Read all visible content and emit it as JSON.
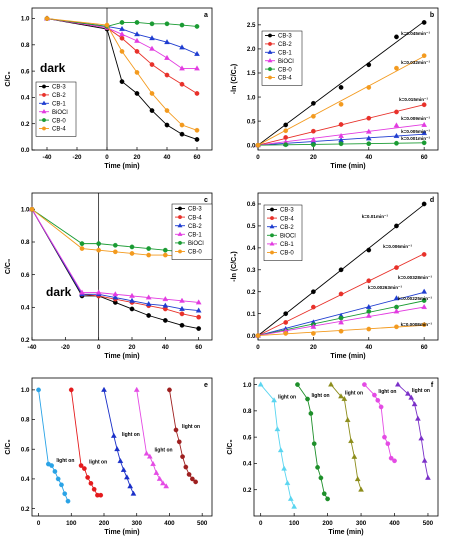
{
  "colors": {
    "cb3": "#000000",
    "cb2": "#e8312a",
    "cb1": "#1f3dd0",
    "bioc": "#e23be0",
    "cb0": "#1a9b33",
    "cb4": "#f39a1e",
    "c_cb3": "#000000",
    "c_cb4": "#e8312a",
    "c_cb2": "#1f3dd0",
    "c_cb1": "#e23be0",
    "c_bioc": "#1a9b33",
    "c_cb0": "#f39a1e",
    "e1": "#2aa3e6",
    "e2": "#e41a1c",
    "e3": "#1a2fc8",
    "e4": "#e44be4",
    "e5": "#9e1f1f",
    "f1": "#5ad5f0",
    "f2": "#1e8f2a",
    "f3": "#8c8c1a",
    "f4": "#e44be4",
    "f5": "#7a2fc8"
  },
  "chart_data": [
    {
      "id": "a",
      "panel_label": "a",
      "type": "line",
      "xlabel": "Time (min)",
      "ylabel": "C/C₀",
      "xlim": [
        -50,
        70
      ],
      "ylim": [
        0.0,
        1.08
      ],
      "xticks": [
        "-40",
        "-20",
        "0",
        "20",
        "40",
        "60"
      ],
      "yticks": [
        "0.0",
        "0.2",
        "0.4",
        "0.6",
        "0.8",
        "1.0"
      ],
      "annotation": "dark",
      "series": [
        {
          "name": "CB-3",
          "color": "cb3",
          "marker": "circle",
          "x": [
            -40,
            0,
            10,
            20,
            30,
            40,
            50,
            60
          ],
          "y": [
            1.0,
            0.92,
            0.52,
            0.43,
            0.3,
            0.19,
            0.12,
            0.08
          ]
        },
        {
          "name": "CB-2",
          "color": "cb2",
          "marker": "circle",
          "x": [
            -40,
            0,
            10,
            20,
            30,
            40,
            50,
            60
          ],
          "y": [
            1.0,
            0.93,
            0.85,
            0.75,
            0.65,
            0.57,
            0.5,
            0.43
          ]
        },
        {
          "name": "CB-1",
          "color": "cb1",
          "marker": "triangle",
          "x": [
            -40,
            0,
            10,
            20,
            30,
            40,
            50,
            60
          ],
          "y": [
            1.0,
            0.94,
            0.92,
            0.88,
            0.85,
            0.82,
            0.78,
            0.73
          ]
        },
        {
          "name": "BiOCl",
          "color": "bioc",
          "marker": "triangle",
          "x": [
            -40,
            0,
            10,
            20,
            30,
            40,
            50,
            60
          ],
          "y": [
            1.0,
            0.93,
            0.88,
            0.83,
            0.77,
            0.7,
            0.62,
            0.62
          ]
        },
        {
          "name": "CB-0",
          "color": "cb0",
          "marker": "circle",
          "x": [
            -40,
            0,
            10,
            20,
            30,
            40,
            50,
            60
          ],
          "y": [
            1.0,
            0.94,
            0.97,
            0.97,
            0.96,
            0.96,
            0.95,
            0.94
          ]
        },
        {
          "name": "CB-4",
          "color": "cb4",
          "marker": "circle",
          "x": [
            -40,
            0,
            10,
            20,
            30,
            40,
            50,
            60
          ],
          "y": [
            1.0,
            0.95,
            0.75,
            0.59,
            0.43,
            0.3,
            0.19,
            0.15
          ]
        }
      ],
      "legend": "bottom-left"
    },
    {
      "id": "b",
      "panel_label": "b",
      "type": "scatter",
      "xlabel": "Time (min)",
      "ylabel": "-ln (C/C₀)",
      "xlim": [
        0,
        65
      ],
      "ylim": [
        -0.1,
        2.85
      ],
      "xticks": [
        "0",
        "20",
        "40",
        "60"
      ],
      "yticks": [
        "0.0",
        "0.5",
        "1.0",
        "1.5",
        "2.0",
        "2.5"
      ],
      "series": [
        {
          "name": "CB-3",
          "color": "cb3",
          "marker": "circle",
          "k_label": "k=0.045min⁻¹",
          "x": [
            0,
            10,
            20,
            30,
            40,
            50,
            60
          ],
          "y": [
            0,
            0.42,
            0.87,
            1.2,
            1.67,
            2.25,
            2.55
          ]
        },
        {
          "name": "CB-2",
          "color": "cb2",
          "marker": "circle",
          "k_label": "k=0.015min⁻¹",
          "x": [
            0,
            10,
            20,
            30,
            40,
            50,
            60
          ],
          "y": [
            0,
            0.16,
            0.29,
            0.43,
            0.56,
            0.69,
            0.84
          ]
        },
        {
          "name": "CB-1",
          "color": "cb1",
          "marker": "triangle",
          "k_label": "k=0.005min⁻¹",
          "x": [
            0,
            10,
            20,
            30,
            40,
            50,
            60
          ],
          "y": [
            0,
            0.02,
            0.07,
            0.1,
            0.14,
            0.19,
            0.25
          ]
        },
        {
          "name": "BiOCl",
          "color": "bioc",
          "marker": "triangle",
          "k_label": "k=0.009min⁻¹",
          "x": [
            0,
            10,
            20,
            30,
            40,
            50,
            60
          ],
          "y": [
            0,
            0.06,
            0.11,
            0.19,
            0.28,
            0.41,
            0.42
          ]
        },
        {
          "name": "CB-0",
          "color": "cb0",
          "marker": "circle",
          "k_label": "k=0.001min⁻¹",
          "x": [
            0,
            10,
            20,
            30,
            40,
            50,
            60
          ],
          "y": [
            0,
            0.01,
            0.01,
            0.03,
            0.03,
            0.04,
            0.05
          ]
        },
        {
          "name": "CB-4",
          "color": "cb4",
          "marker": "circle",
          "k_label": "k=0.032min⁻¹",
          "x": [
            0,
            10,
            20,
            30,
            40,
            50,
            60
          ],
          "y": [
            0,
            0.3,
            0.6,
            0.85,
            1.2,
            1.6,
            1.86
          ]
        }
      ],
      "legend": "top-left"
    },
    {
      "id": "c",
      "panel_label": "c",
      "type": "line",
      "xlabel": "Time (min)",
      "ylabel": "C/C₀",
      "xlim": [
        -40,
        68
      ],
      "ylim": [
        0.2,
        1.1
      ],
      "xticks": [
        "-40",
        "-20",
        "0",
        "20",
        "40",
        "60"
      ],
      "yticks": [
        "0.2",
        "0.4",
        "0.6",
        "0.8",
        "1.0"
      ],
      "annotation": "dark",
      "series": [
        {
          "name": "CB-3",
          "color": "c_cb3",
          "marker": "circle",
          "x": [
            -40,
            -10,
            0,
            10,
            20,
            30,
            40,
            50,
            60
          ],
          "y": [
            1.0,
            0.47,
            0.47,
            0.43,
            0.39,
            0.35,
            0.32,
            0.29,
            0.27
          ]
        },
        {
          "name": "CB-4",
          "color": "c_cb4",
          "marker": "circle",
          "x": [
            -40,
            -10,
            0,
            10,
            20,
            30,
            40,
            50,
            60
          ],
          "y": [
            1.0,
            0.48,
            0.47,
            0.45,
            0.43,
            0.41,
            0.39,
            0.36,
            0.34
          ]
        },
        {
          "name": "CB-2",
          "color": "c_cb2",
          "marker": "triangle",
          "x": [
            -40,
            -10,
            0,
            10,
            20,
            30,
            40,
            50,
            60
          ],
          "y": [
            1.0,
            0.48,
            0.48,
            0.46,
            0.44,
            0.42,
            0.41,
            0.39,
            0.38
          ]
        },
        {
          "name": "CB-1",
          "color": "c_cb1",
          "marker": "triangle",
          "x": [
            -40,
            -10,
            0,
            10,
            20,
            30,
            40,
            50,
            60
          ],
          "y": [
            1.0,
            0.49,
            0.49,
            0.48,
            0.47,
            0.46,
            0.45,
            0.44,
            0.43
          ]
        },
        {
          "name": "BiOCl",
          "color": "c_bioc",
          "marker": "circle",
          "x": [
            -40,
            -10,
            0,
            10,
            20,
            30,
            40,
            50,
            60
          ],
          "y": [
            1.0,
            0.79,
            0.79,
            0.78,
            0.77,
            0.76,
            0.75,
            0.74,
            0.73
          ]
        },
        {
          "name": "CB-0",
          "color": "c_cb0",
          "marker": "circle",
          "x": [
            -40,
            -10,
            0,
            10,
            20,
            30,
            40,
            50,
            60
          ],
          "y": [
            1.0,
            0.76,
            0.75,
            0.74,
            0.73,
            0.72,
            0.72,
            0.71,
            0.71
          ]
        }
      ],
      "legend": "top-right"
    },
    {
      "id": "d",
      "panel_label": "d",
      "type": "scatter",
      "xlabel": "Time (min)",
      "ylabel": "-ln (C/C₀)",
      "xlim": [
        0,
        65
      ],
      "ylim": [
        -0.02,
        0.65
      ],
      "xticks": [
        "0",
        "20",
        "40",
        "60"
      ],
      "yticks": [
        "0.0",
        "0.1",
        "0.2",
        "0.3",
        "0.4",
        "0.5",
        "0.6"
      ],
      "series": [
        {
          "name": "CB-3",
          "color": "c_cb3",
          "marker": "circle",
          "k_label": "k=0.01min⁻¹",
          "x": [
            0,
            10,
            20,
            30,
            40,
            50,
            60
          ],
          "y": [
            0,
            0.1,
            0.2,
            0.3,
            0.39,
            0.5,
            0.6
          ]
        },
        {
          "name": "CB-4",
          "color": "c_cb4",
          "marker": "circle",
          "k_label": "k=0.006min⁻¹",
          "x": [
            0,
            10,
            20,
            30,
            40,
            50,
            60
          ],
          "y": [
            0,
            0.06,
            0.13,
            0.19,
            0.25,
            0.31,
            0.37
          ]
        },
        {
          "name": "CB-2",
          "color": "c_cb2",
          "marker": "triangle",
          "k_label": "k=0.00328min⁻¹",
          "x": [
            0,
            10,
            20,
            30,
            40,
            50,
            60
          ],
          "y": [
            0,
            0.03,
            0.06,
            0.09,
            0.13,
            0.17,
            0.2
          ]
        },
        {
          "name": "BiOCl",
          "color": "c_bioc",
          "marker": "circle",
          "k_label": "k=0.00263min⁻¹",
          "x": [
            0,
            10,
            20,
            30,
            40,
            50,
            60
          ],
          "y": [
            0,
            0.02,
            0.05,
            0.08,
            0.11,
            0.13,
            0.16
          ]
        },
        {
          "name": "CB-1",
          "color": "c_cb1",
          "marker": "triangle",
          "k_label": "k=0.00225min⁻¹",
          "x": [
            0,
            10,
            20,
            30,
            40,
            50,
            60
          ],
          "y": [
            0,
            0.02,
            0.04,
            0.06,
            0.09,
            0.11,
            0.13
          ]
        },
        {
          "name": "CB-0",
          "color": "c_cb0",
          "marker": "circle",
          "k_label": "k=0.0008min⁻¹",
          "x": [
            0,
            10,
            20,
            30,
            40,
            50,
            60
          ],
          "y": [
            0,
            0.01,
            0.01,
            0.02,
            0.03,
            0.04,
            0.05
          ]
        }
      ],
      "legend": "top-left"
    },
    {
      "id": "e",
      "panel_label": "e",
      "type": "line",
      "xlabel": "Time (min)",
      "ylabel": "C/C₀",
      "xlim": [
        -20,
        530
      ],
      "ylim": [
        0.15,
        1.08
      ],
      "xticks": [
        "0",
        "100",
        "200",
        "300",
        "400",
        "500"
      ],
      "yticks": [
        "0.2",
        "0.4",
        "0.6",
        "0.8",
        "1.0"
      ],
      "series": [
        {
          "color": "e1",
          "marker": "circle",
          "annotation": "light on",
          "x": [
            0,
            30,
            40,
            50,
            60,
            70,
            80,
            90
          ],
          "y": [
            1.0,
            0.5,
            0.49,
            0.45,
            0.4,
            0.36,
            0.3,
            0.25
          ]
        },
        {
          "color": "e2",
          "marker": "circle",
          "annotation": "light on",
          "x": [
            100,
            130,
            140,
            150,
            160,
            170,
            180,
            190
          ],
          "y": [
            1.0,
            0.49,
            0.47,
            0.41,
            0.37,
            0.33,
            0.29,
            0.29
          ]
        },
        {
          "color": "e3",
          "marker": "triangle",
          "annotation": "light on",
          "x": [
            200,
            230,
            240,
            250,
            260,
            270,
            280,
            290
          ],
          "y": [
            1.0,
            0.69,
            0.6,
            0.52,
            0.46,
            0.41,
            0.35,
            0.3
          ]
        },
        {
          "color": "e4",
          "marker": "triangle",
          "annotation": "light on",
          "x": [
            300,
            330,
            340,
            350,
            360,
            370,
            380,
            390
          ],
          "y": [
            1.0,
            0.57,
            0.55,
            0.5,
            0.44,
            0.4,
            0.37,
            0.35
          ]
        },
        {
          "color": "e5",
          "marker": "circle",
          "annotation": "light on",
          "x": [
            400,
            420,
            430,
            440,
            450,
            460,
            470,
            480
          ],
          "y": [
            1.0,
            0.73,
            0.65,
            0.55,
            0.48,
            0.43,
            0.4,
            0.38
          ]
        }
      ]
    },
    {
      "id": "f",
      "panel_label": "f",
      "type": "line",
      "xlabel": "Time (min)",
      "ylabel": "C/C₀",
      "xlim": [
        -20,
        530
      ],
      "ylim": [
        0.0,
        1.05
      ],
      "xticks": [
        "0",
        "100",
        "200",
        "300",
        "400",
        "500"
      ],
      "yticks": [
        "0.2",
        "0.4",
        "0.6",
        "0.8",
        "1.0"
      ],
      "series": [
        {
          "color": "f1",
          "marker": "triangle",
          "annotation": "light on",
          "x": [
            0,
            40,
            50,
            60,
            70,
            80,
            90,
            100
          ],
          "y": [
            1.0,
            0.88,
            0.66,
            0.5,
            0.36,
            0.25,
            0.13,
            0.07
          ]
        },
        {
          "color": "f2",
          "marker": "circle",
          "annotation": "light on",
          "x": [
            110,
            140,
            150,
            160,
            170,
            180,
            190,
            200
          ],
          "y": [
            1.0,
            0.89,
            0.78,
            0.55,
            0.37,
            0.29,
            0.17,
            0.13
          ]
        },
        {
          "color": "f3",
          "marker": "triangle",
          "annotation": "light on",
          "x": [
            210,
            240,
            250,
            260,
            270,
            280,
            290,
            300
          ],
          "y": [
            1.0,
            0.91,
            0.89,
            0.73,
            0.57,
            0.45,
            0.28,
            0.2
          ]
        },
        {
          "color": "f4",
          "marker": "circle",
          "annotation": "light on",
          "x": [
            310,
            340,
            350,
            360,
            370,
            380,
            390,
            400
          ],
          "y": [
            1.0,
            0.92,
            0.88,
            0.83,
            0.6,
            0.55,
            0.44,
            0.42
          ]
        },
        {
          "color": "f5",
          "marker": "triangle",
          "annotation": "light on",
          "x": [
            410,
            440,
            450,
            460,
            470,
            480,
            490,
            500
          ],
          "y": [
            1.0,
            0.93,
            0.9,
            0.85,
            0.74,
            0.59,
            0.42,
            0.29
          ]
        }
      ]
    }
  ]
}
